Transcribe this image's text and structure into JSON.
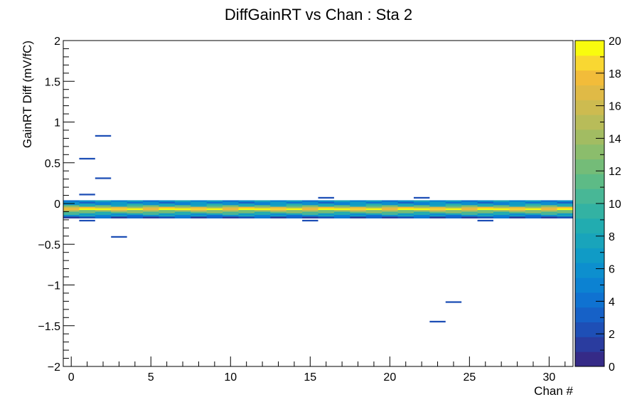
{
  "chart_data": {
    "type": "heatmap",
    "title": "DiffGainRT vs Chan : Sta 2",
    "xlabel": "Chan #",
    "ylabel": "GainRT Diff (mV/fC)",
    "xlim": [
      -0.5,
      31.5
    ],
    "ylim": [
      -2,
      2
    ],
    "x_ticks": [
      0,
      5,
      10,
      15,
      20,
      25,
      30
    ],
    "x_tick_labels": [
      "0",
      "5",
      "10",
      "15",
      "20",
      "25",
      "30"
    ],
    "y_ticks": [
      -2,
      -1.5,
      -1,
      -0.5,
      0,
      0.5,
      1,
      1.5,
      2
    ],
    "y_tick_labels": [
      "−2",
      "−1.5",
      "−1",
      "−0.5",
      "0",
      "0.5",
      "1",
      "1.5",
      "2"
    ],
    "bin_width_y": 0.02,
    "z_range": [
      0,
      20
    ],
    "z_ticks": [
      0,
      2,
      4,
      6,
      8,
      10,
      12,
      14,
      16,
      18,
      20
    ],
    "z_tick_labels": [
      "0",
      "2",
      "4",
      "6",
      "8",
      "10",
      "12",
      "14",
      "16",
      "18",
      "20"
    ],
    "palette": [
      "#352a87",
      "#2a3c9f",
      "#1e4fb6",
      "#1661c7",
      "#0f72d1",
      "#0c82d2",
      "#0d8fce",
      "#109bc6",
      "#19a4bb",
      "#22acb0",
      "#33b2a3",
      "#48b796",
      "#5dbb86",
      "#74bc78",
      "#8bbd6c",
      "#a2bc62",
      "#b8bc59",
      "#cdbb50",
      "#e0ba46",
      "#f2bc3a",
      "#f9d732",
      "#f9fb0e"
    ],
    "background_bins": [
      {
        "y": 0.03,
        "count": 6
      },
      {
        "y": 0.01,
        "count": 5
      },
      {
        "y": -0.01,
        "count": 7
      },
      {
        "y": -0.03,
        "count": 10
      },
      {
        "y": -0.05,
        "count": 16
      },
      {
        "y": -0.07,
        "count": 20
      },
      {
        "y": -0.09,
        "count": 14
      },
      {
        "y": -0.11,
        "count": 11
      },
      {
        "y": -0.13,
        "count": 8
      },
      {
        "y": -0.15,
        "count": 6
      },
      {
        "y": -0.17,
        "count": 2
      }
    ],
    "outlier_bins": [
      {
        "x": 1,
        "y": 0.55,
        "count": 2
      },
      {
        "x": 1,
        "y": 0.11,
        "count": 2
      },
      {
        "x": 1,
        "y": -0.21,
        "count": 2
      },
      {
        "x": 2,
        "y": 0.83,
        "count": 2
      },
      {
        "x": 2,
        "y": 0.31,
        "count": 2
      },
      {
        "x": 3,
        "y": -0.41,
        "count": 2
      },
      {
        "x": 15,
        "y": -0.21,
        "count": 2
      },
      {
        "x": 16,
        "y": 0.07,
        "count": 2
      },
      {
        "x": 22,
        "y": 0.07,
        "count": 2
      },
      {
        "x": 23,
        "y": -1.45,
        "count": 2
      },
      {
        "x": 24,
        "y": -1.21,
        "count": 2
      },
      {
        "x": 26,
        "y": -0.21,
        "count": 2
      }
    ]
  }
}
